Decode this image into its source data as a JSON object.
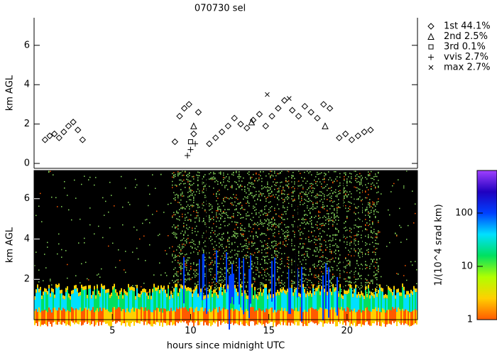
{
  "chart_data": [
    {
      "type": "scatter",
      "title": "070730 sel",
      "ylabel": "km AGL",
      "xlim": [
        0,
        24.5
      ],
      "ylim": [
        -0.25,
        7.4
      ],
      "yticks": [
        0,
        2,
        4,
        6
      ],
      "series": [
        {
          "name": "1st 44.1%",
          "marker": "diamond",
          "x": [
            0.7,
            1.0,
            1.3,
            1.6,
            1.9,
            2.2,
            2.5,
            2.8,
            3.1,
            9.0,
            9.3,
            9.6,
            9.9,
            10.2,
            10.5,
            11.2,
            11.6,
            12.0,
            12.4,
            12.8,
            13.2,
            13.6,
            14.0,
            14.4,
            14.8,
            15.2,
            15.6,
            16.0,
            16.5,
            16.9,
            17.3,
            17.7,
            18.1,
            18.5,
            18.9,
            19.5,
            19.9,
            20.3,
            20.7,
            21.1,
            21.5
          ],
          "values": [
            1.2,
            1.4,
            1.5,
            1.3,
            1.6,
            1.9,
            2.1,
            1.7,
            1.2,
            1.1,
            2.4,
            2.8,
            3.0,
            1.5,
            2.6,
            1.0,
            1.3,
            1.6,
            1.9,
            2.3,
            2.0,
            1.8,
            2.2,
            2.5,
            1.9,
            2.4,
            2.8,
            3.2,
            2.7,
            2.4,
            2.9,
            2.6,
            2.3,
            3.0,
            2.8,
            1.3,
            1.5,
            1.2,
            1.4,
            1.6,
            1.7
          ]
        },
        {
          "name": "2nd 2.5%",
          "marker": "triangle",
          "x": [
            10.2,
            13.9,
            18.6
          ],
          "values": [
            1.9,
            2.1,
            1.9
          ]
        },
        {
          "name": "3rd 0.1%",
          "marker": "square",
          "x": [
            10.0
          ],
          "values": [
            1.1
          ]
        },
        {
          "name": "vvis 2.7%",
          "marker": "plus",
          "x": [
            9.8,
            10.0,
            10.3
          ],
          "values": [
            0.4,
            0.7,
            1.0
          ]
        },
        {
          "name": "max 2.7%",
          "marker": "cross",
          "x": [
            14.9,
            16.3
          ],
          "values": [
            3.5,
            3.3
          ]
        }
      ]
    },
    {
      "type": "heatmap",
      "ylabel": "km AGL",
      "xlabel": "hours since midnight UTC",
      "xlim": [
        0,
        24.5
      ],
      "xticks": [
        5,
        10,
        15,
        20
      ],
      "ylim": [
        0,
        7.4
      ],
      "yticks": [
        2,
        4,
        6
      ],
      "colorbar": {
        "label": "1/(10^4 srad km)",
        "log": true,
        "clim": [
          1,
          630
        ],
        "ticks": [
          1,
          10,
          100
        ],
        "colors": [
          "#ff5a00",
          "#ffd000",
          "#b0ff00",
          "#00e060",
          "#00e0ff",
          "#0040ff",
          "#2000c0",
          "#a040ff"
        ]
      }
    }
  ]
}
